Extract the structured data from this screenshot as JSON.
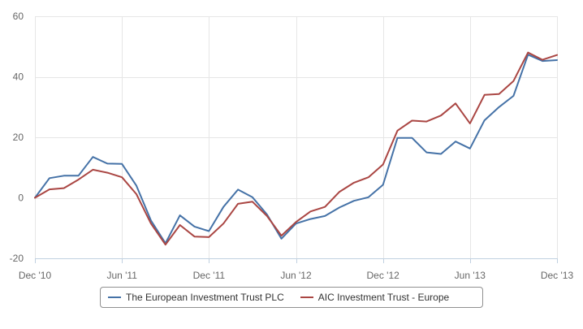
{
  "chart_data": {
    "type": "line",
    "title": "",
    "xlabel": "",
    "ylabel": "",
    "ylim": [
      -20,
      60
    ],
    "yticks": [
      "60",
      "40",
      "20",
      "0",
      "-20"
    ],
    "ytick_values": [
      60,
      40,
      20,
      0,
      -20
    ],
    "xticks": [
      "Dec '10",
      "Jun '11",
      "Dec '11",
      "Jun '12",
      "Dec '12",
      "Jun '13",
      "Dec '13"
    ],
    "grid": true,
    "legend_position": "bottom-center",
    "x_start": "2010-12",
    "x_end": "2013-12",
    "series": [
      {
        "name": "The European Investment Trust PLC",
        "color": "#4572a7",
        "x": [
          "2010-12",
          "2011-01",
          "2011-02",
          "2011-03",
          "2011-04",
          "2011-05",
          "2011-06",
          "2011-07",
          "2011-08",
          "2011-09",
          "2011-10",
          "2011-11",
          "2011-12",
          "2012-01",
          "2012-02",
          "2012-03",
          "2012-04",
          "2012-05",
          "2012-06",
          "2012-07",
          "2012-08",
          "2012-09",
          "2012-10",
          "2012-11",
          "2012-12",
          "2013-01",
          "2013-02",
          "2013-03",
          "2013-04",
          "2013-05",
          "2013-06",
          "2013-07",
          "2013-08",
          "2013-09",
          "2013-10",
          "2013-11",
          "2013-12"
        ],
        "values": [
          0,
          6.5,
          7.3,
          7.3,
          13.5,
          11.3,
          11.2,
          4,
          -7.5,
          -15,
          -5.8,
          -9.5,
          -11,
          -3,
          2.7,
          0.2,
          -5.5,
          -13.5,
          -8.5,
          -7,
          -6,
          -3.2,
          -1,
          0.2,
          4.3,
          19.8,
          19.8,
          15,
          14.5,
          18.6,
          16.3,
          25.6,
          30,
          33.7,
          47.3,
          45.2,
          45.5
        ]
      },
      {
        "name": "AIC Investment Trust - Europe",
        "color": "#aa4643",
        "x": [
          "2010-12",
          "2011-01",
          "2011-02",
          "2011-03",
          "2011-04",
          "2011-05",
          "2011-06",
          "2011-07",
          "2011-08",
          "2011-09",
          "2011-10",
          "2011-11",
          "2011-12",
          "2012-01",
          "2012-02",
          "2012-03",
          "2012-04",
          "2012-05",
          "2012-06",
          "2012-07",
          "2012-08",
          "2012-09",
          "2012-10",
          "2012-11",
          "2012-12",
          "2013-01",
          "2013-02",
          "2013-03",
          "2013-04",
          "2013-05",
          "2013-06",
          "2013-07",
          "2013-08",
          "2013-09",
          "2013-10",
          "2013-11",
          "2013-12"
        ],
        "values": [
          0,
          2.8,
          3.2,
          6,
          9.3,
          8.3,
          6.8,
          1.2,
          -8.5,
          -15.5,
          -9,
          -12.8,
          -13,
          -8.5,
          -2,
          -1.3,
          -6,
          -12.5,
          -8,
          -4.5,
          -3,
          2,
          5,
          6.8,
          11,
          22.2,
          25.5,
          25.2,
          27.2,
          31.2,
          24.6,
          34,
          34.3,
          38.6,
          48,
          45.6,
          47.2
        ]
      }
    ]
  }
}
